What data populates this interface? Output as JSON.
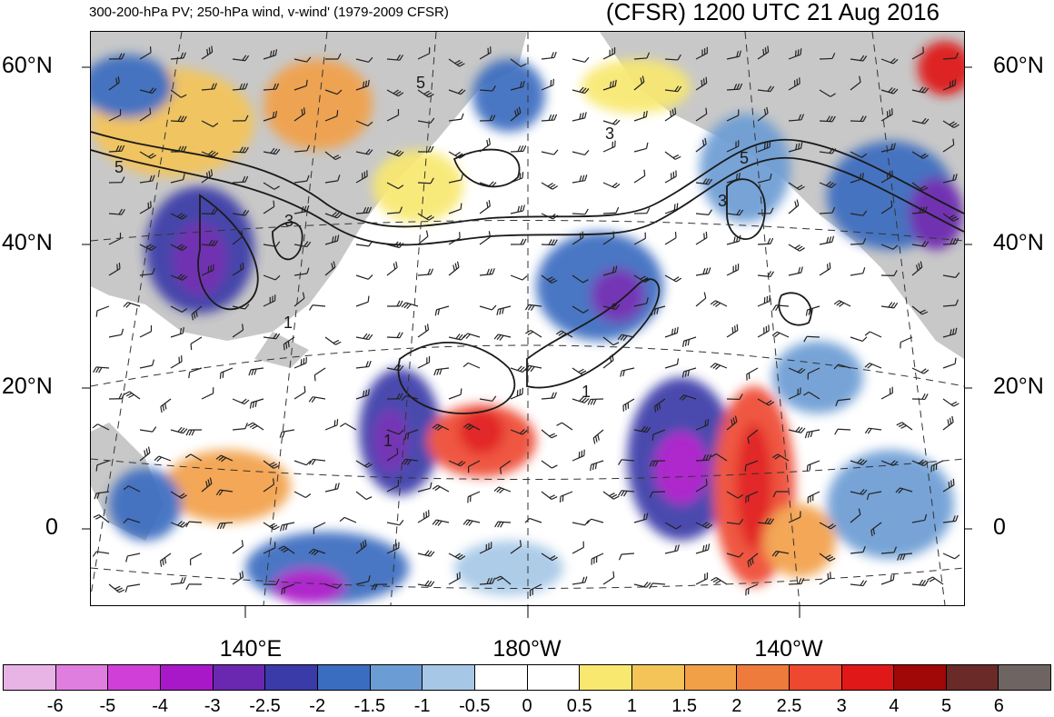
{
  "header": {
    "title_left": "300-200-hPa PV; 250-hPa wind, v-wind' (1979-2009 CFSR)",
    "title_right": "(CFSR) 1200 UTC 21 Aug 2016"
  },
  "axes": {
    "lat_labels_left": [
      "60°N",
      "40°N",
      "20°N",
      "0"
    ],
    "lat_labels_right": [
      "60°N",
      "40°N",
      "20°N",
      "0"
    ],
    "lon_labels": [
      "140°E",
      "180°W",
      "140°W"
    ]
  },
  "contour_labels": [
    "5",
    "5",
    "3",
    "3",
    "5",
    "3",
    "1",
    "1",
    "1"
  ],
  "colorbar": {
    "labels": [
      "-6",
      "-5",
      "-4",
      "-3",
      "-2.5",
      "-2",
      "-1.5",
      "-1",
      "-0.5",
      "0",
      "0.5",
      "1",
      "1.5",
      "2",
      "2.5",
      "3",
      "4",
      "5",
      "6"
    ],
    "colors": [
      "#e8b4e6",
      "#e07ee0",
      "#d040d8",
      "#a818c8",
      "#6a28b0",
      "#3a3aa8",
      "#3a6cc0",
      "#6c9cd4",
      "#a6c8e6",
      "#ffffff",
      "#ffffff",
      "#f8e870",
      "#f4c458",
      "#f2a048",
      "#ee7a3c",
      "#ee4830",
      "#e01818",
      "#a00808",
      "#6a2a28",
      "#6e6462"
    ]
  },
  "map": {
    "land_color": "#c8c8c8",
    "contour_color": "#1a1a1a",
    "graticule_style": "dashed"
  }
}
